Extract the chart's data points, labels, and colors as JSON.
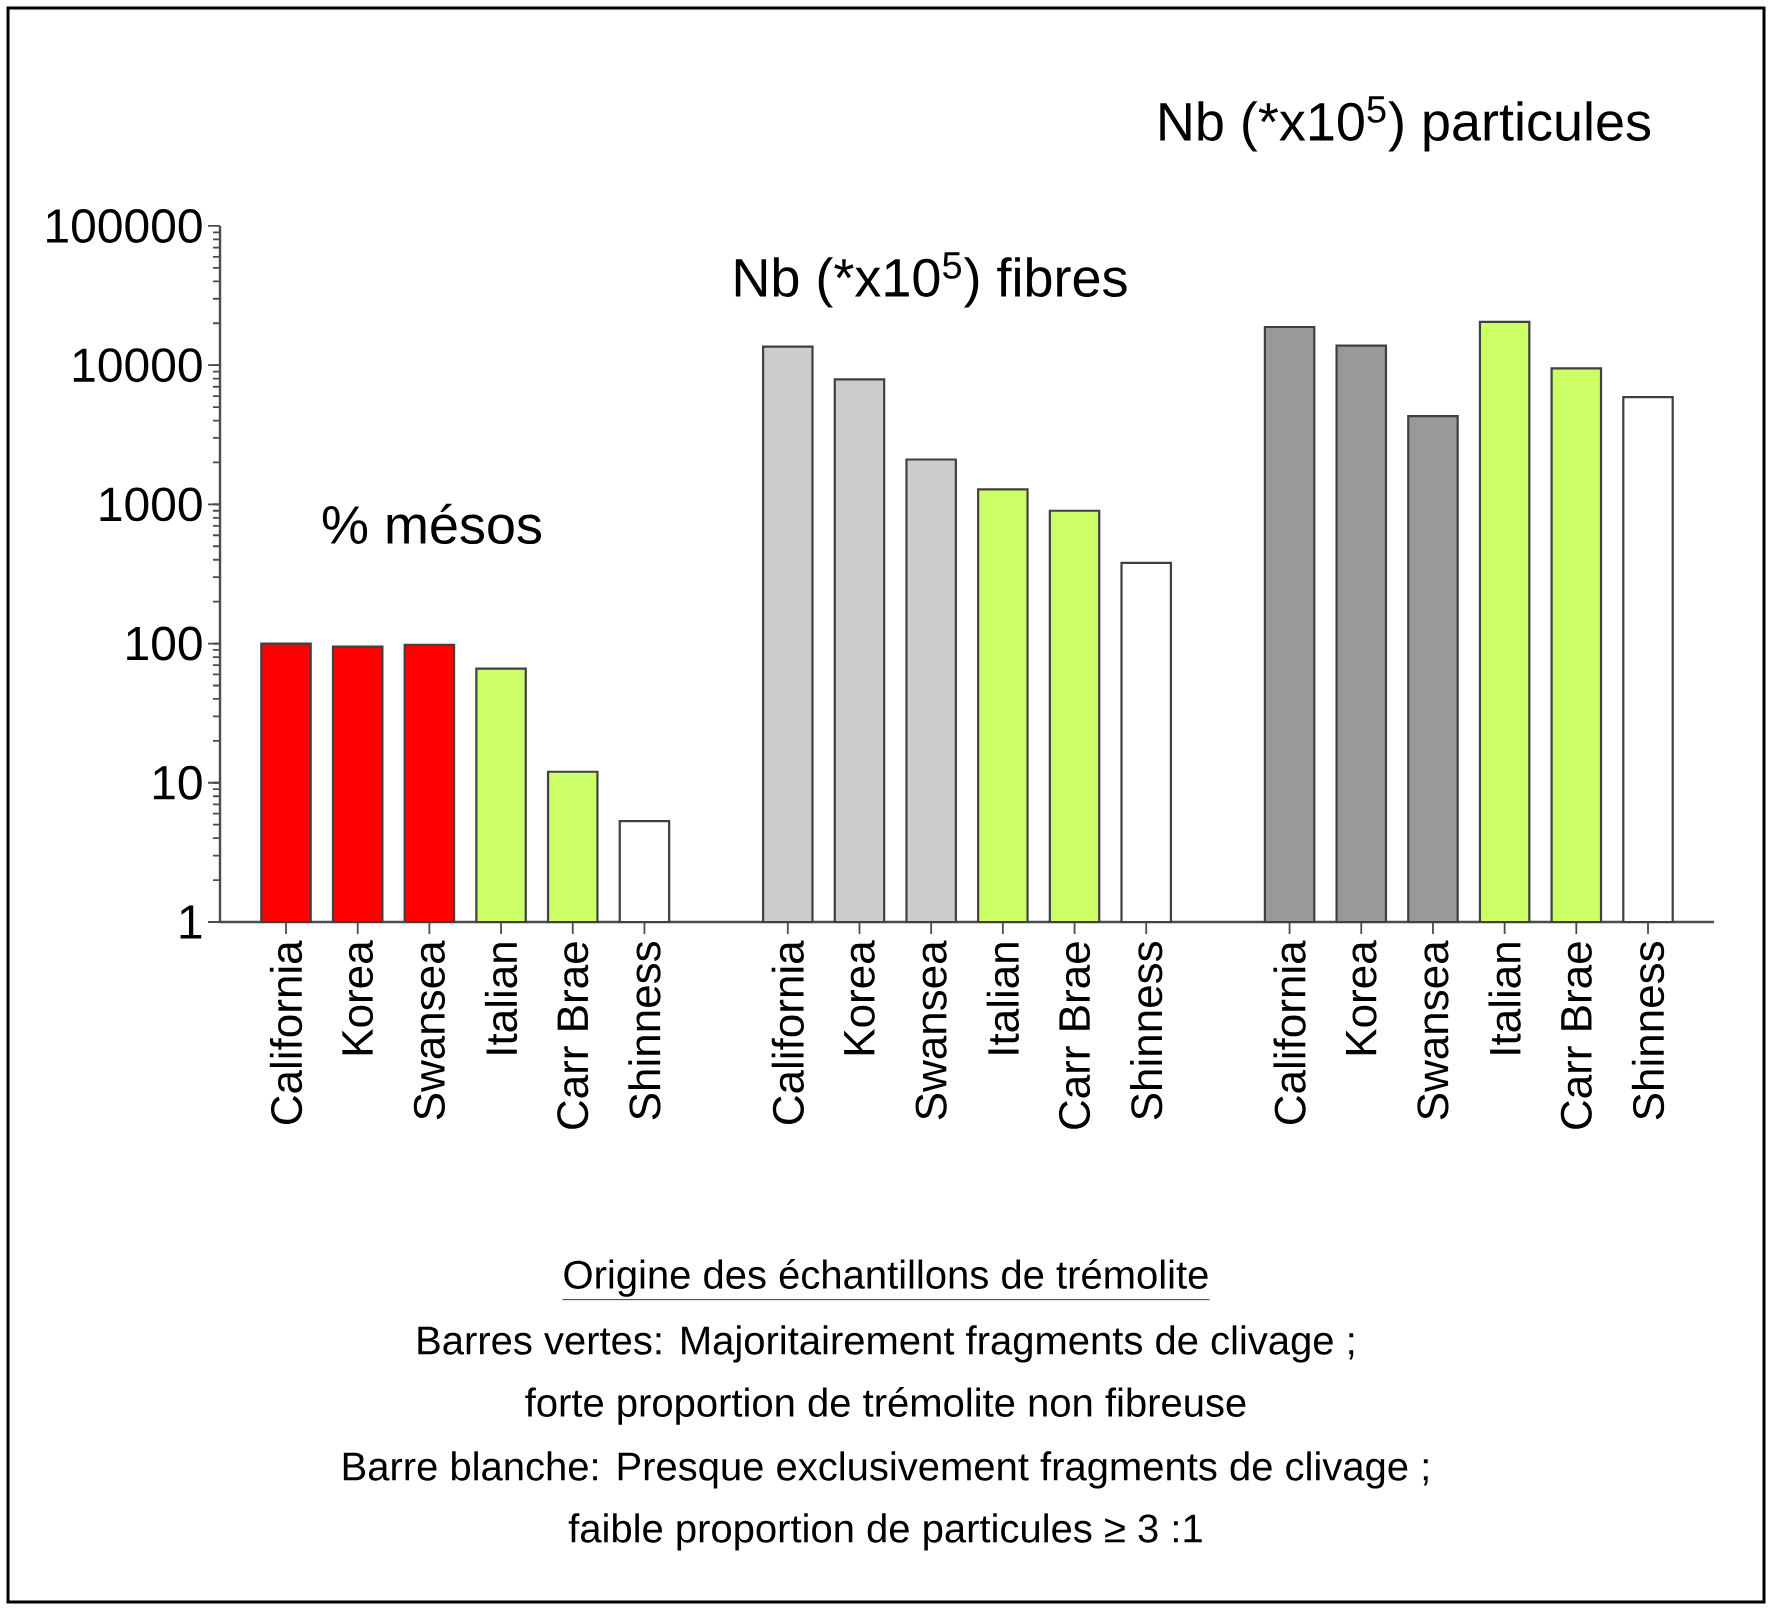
{
  "chart_data": {
    "type": "bar",
    "xlabel": "Origine des échantillons de trémolite",
    "categories": [
      "California",
      "Korea",
      "Swansea",
      "Italian",
      "Carr Brae",
      "Shinness",
      null,
      "California",
      "Korea",
      "Swansea",
      "Italian",
      "Carr Brae",
      "Shinness",
      null,
      "California",
      "Korea",
      "Swansea",
      "Italian",
      "Carr Brae",
      "Shinness"
    ],
    "values": [
      100,
      95,
      98,
      66,
      12,
      5.3,
      null,
      13600,
      7900,
      2100,
      1280,
      900,
      380,
      null,
      18800,
      13800,
      4300,
      20500,
      9500,
      5900
    ],
    "colors": [
      "#ff0000",
      "#ff0000",
      "#ff0000",
      "#ccff66",
      "#ccff66",
      "#ffffff",
      null,
      "#cccccc",
      "#cccccc",
      "#cccccc",
      "#ccff66",
      "#ccff66",
      "#ffffff",
      null,
      "#999999",
      "#999999",
      "#999999",
      "#ccff66",
      "#ccff66",
      "#ffffff"
    ],
    "log": "y",
    "ylim": [
      1,
      100000
    ],
    "yticks": [
      1,
      10,
      100,
      1000,
      10000,
      100000
    ],
    "annotations": [
      "% mésos",
      "Nb (*x10$^{5}$) fibres",
      "Nb (*x10$^{5}$) particules",
      "Barres vertes: Majoritairement fragments de clivage ;",
      "forte proportion de trémolite non fibreuse",
      "Barre blanche: Presque exclusivement fragments de clivage ;",
      "faible proportion de particules ≥ 3 :1"
    ]
  }
}
